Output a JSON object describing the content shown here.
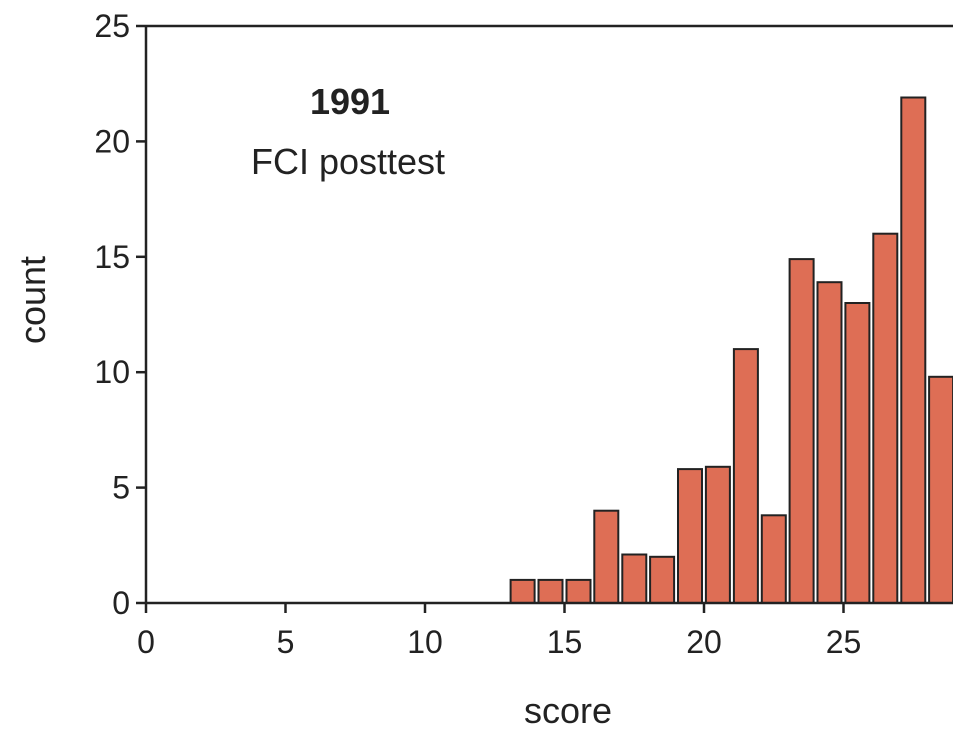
{
  "chart_data": {
    "type": "bar",
    "title": "",
    "annotation": {
      "year": "1991",
      "label": "FCI posttest"
    },
    "xlabel": "score",
    "ylabel": "count",
    "xlim": [
      0,
      29
    ],
    "ylim": [
      0,
      25
    ],
    "xticks": [
      0,
      5,
      10,
      15,
      20,
      25
    ],
    "yticks": [
      0,
      5,
      10,
      15,
      20,
      25
    ],
    "x": [
      14,
      15,
      16,
      17,
      18,
      19,
      20,
      21,
      22,
      23,
      24,
      25,
      26,
      27,
      28,
      29
    ],
    "values": [
      1,
      1,
      1,
      4,
      2.1,
      2,
      5.8,
      5.9,
      11,
      3.8,
      14.9,
      13.9,
      13,
      16,
      21.9,
      9.8
    ],
    "bar_color": "#de6e55",
    "bar_edge_color": "#222222",
    "grid": false
  }
}
